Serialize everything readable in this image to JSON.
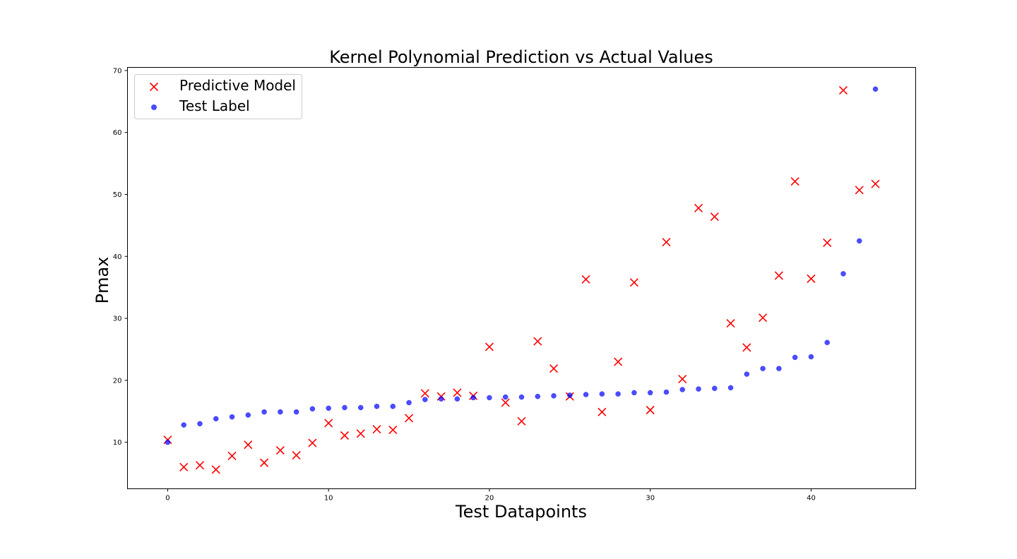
{
  "chart_data": {
    "type": "scatter",
    "title": "Kernel Polynomial Prediction vs Actual Values",
    "xlabel": "Test Datapoints",
    "ylabel": "Pmax",
    "xlim": [
      -2.5,
      46.5
    ],
    "ylim": [
      2.5,
      70.5
    ],
    "xticks": [
      0,
      10,
      20,
      30,
      40
    ],
    "yticks": [
      10,
      20,
      30,
      40,
      50,
      60,
      70
    ],
    "grid": false,
    "legend_position": "top-left",
    "series": [
      {
        "name": "Predictive Model",
        "marker": "x",
        "color": "#ff0000",
        "x": [
          0,
          1,
          2,
          3,
          4,
          5,
          6,
          7,
          8,
          9,
          10,
          11,
          12,
          13,
          14,
          15,
          16,
          17,
          18,
          19,
          20,
          21,
          22,
          23,
          24,
          25,
          26,
          27,
          28,
          29,
          30,
          31,
          32,
          33,
          34,
          35,
          36,
          37,
          38,
          39,
          40,
          41,
          42,
          43,
          44
        ],
        "y": [
          10.4,
          6.0,
          6.3,
          5.6,
          7.8,
          9.6,
          6.7,
          8.7,
          7.9,
          9.9,
          13.1,
          11.1,
          11.4,
          12.1,
          12.0,
          13.9,
          17.9,
          17.4,
          18.0,
          17.5,
          25.4,
          16.4,
          13.4,
          26.3,
          21.9,
          17.4,
          36.3,
          14.9,
          23.0,
          35.8,
          15.2,
          42.3,
          20.2,
          47.8,
          46.4,
          29.2,
          25.3,
          30.1,
          36.9,
          52.1,
          36.4,
          42.2,
          66.8,
          50.7,
          51.7
        ]
      },
      {
        "name": "Test Label",
        "marker": "o",
        "color": "#0000ff",
        "x": [
          0,
          1,
          2,
          3,
          4,
          5,
          6,
          7,
          8,
          9,
          10,
          11,
          12,
          13,
          14,
          15,
          16,
          17,
          18,
          19,
          20,
          21,
          22,
          23,
          24,
          25,
          26,
          27,
          28,
          29,
          30,
          31,
          32,
          33,
          34,
          35,
          36,
          37,
          38,
          39,
          40,
          41,
          42,
          43,
          44
        ],
        "y": [
          10.0,
          12.8,
          13.0,
          13.8,
          14.1,
          14.4,
          14.9,
          14.9,
          14.9,
          15.4,
          15.5,
          15.6,
          15.6,
          15.8,
          15.8,
          16.4,
          16.9,
          17.0,
          17.0,
          17.2,
          17.2,
          17.3,
          17.3,
          17.4,
          17.5,
          17.6,
          17.7,
          17.8,
          17.8,
          18.0,
          18.0,
          18.1,
          18.5,
          18.6,
          18.7,
          18.8,
          21.0,
          21.9,
          21.9,
          23.7,
          23.8,
          26.1,
          37.2,
          42.5,
          67.0
        ]
      }
    ]
  }
}
